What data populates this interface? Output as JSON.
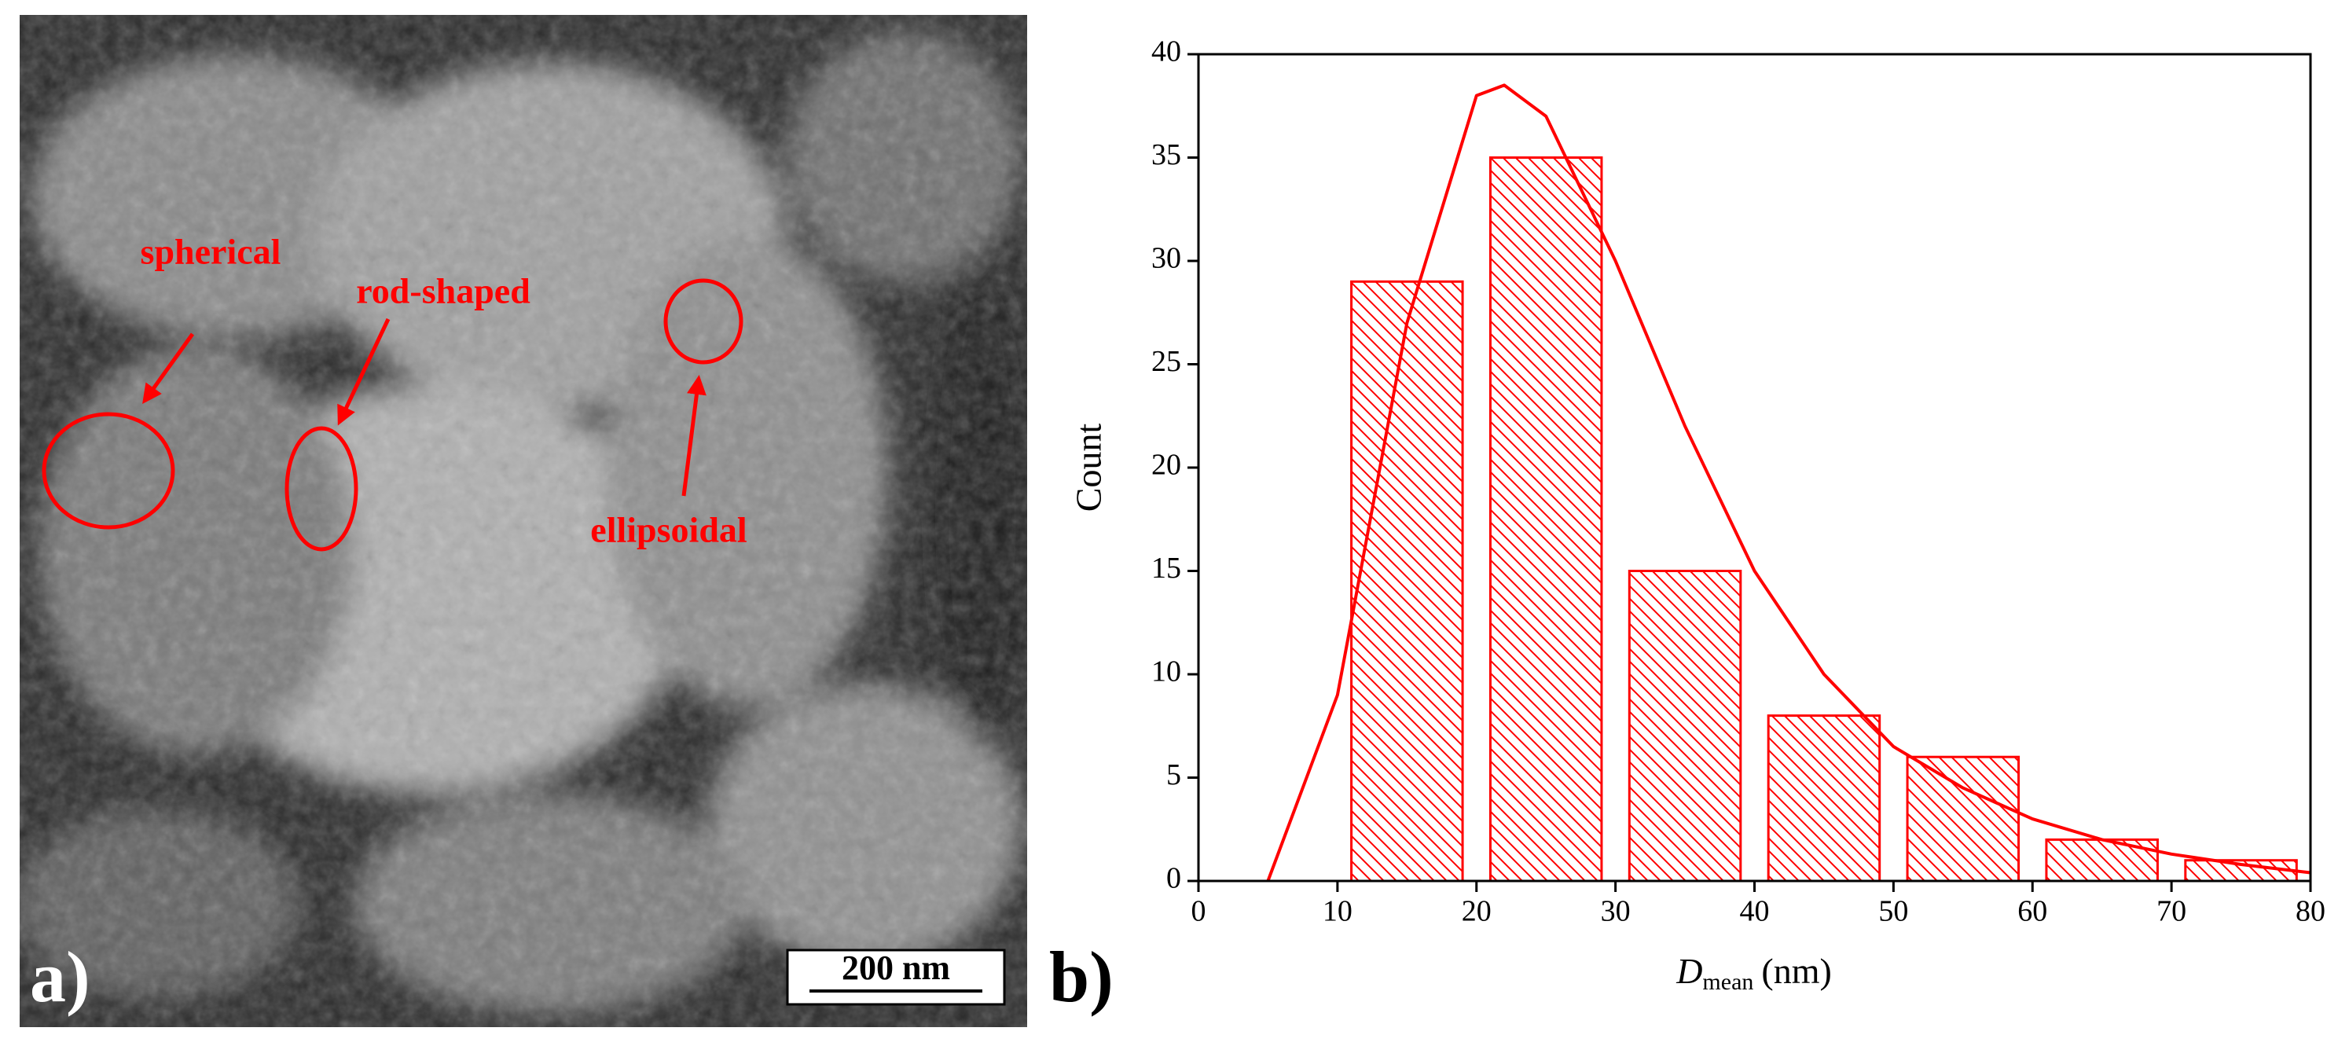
{
  "sem_image": {
    "panel_label": "a)",
    "labels": [
      "spherical",
      "rod-shaped",
      "ellipsoidal"
    ],
    "scale_bar": "200 nm"
  },
  "chart_data": {
    "type": "histogram",
    "panel_label": "b)",
    "x_label": {
      "symbol": "D",
      "subscript": "mean",
      "unit": "(nm)"
    },
    "y_label": "Count",
    "bins": [
      10,
      20,
      30,
      40,
      50,
      60,
      70,
      80
    ],
    "values": [
      29,
      35,
      15,
      8,
      6,
      2,
      1
    ],
    "color": "#ff0000",
    "fit": {
      "x": [
        5,
        10,
        15,
        20,
        22,
        25,
        30,
        35,
        40,
        45,
        50,
        55,
        60,
        65,
        70,
        75,
        80
      ],
      "values": [
        0,
        9,
        27,
        38,
        38.5,
        37,
        30,
        22,
        15,
        10,
        6.5,
        4.5,
        3,
        2,
        1.3,
        0.8,
        0.4
      ],
      "color": "#ff0000"
    },
    "xlim": [
      0,
      80
    ],
    "xticks": [
      0,
      10,
      20,
      30,
      40,
      50,
      60,
      70,
      80
    ],
    "ylim": [
      0,
      40
    ],
    "yticks": [
      0,
      5,
      10,
      15,
      20,
      25,
      30,
      35,
      40
    ]
  }
}
